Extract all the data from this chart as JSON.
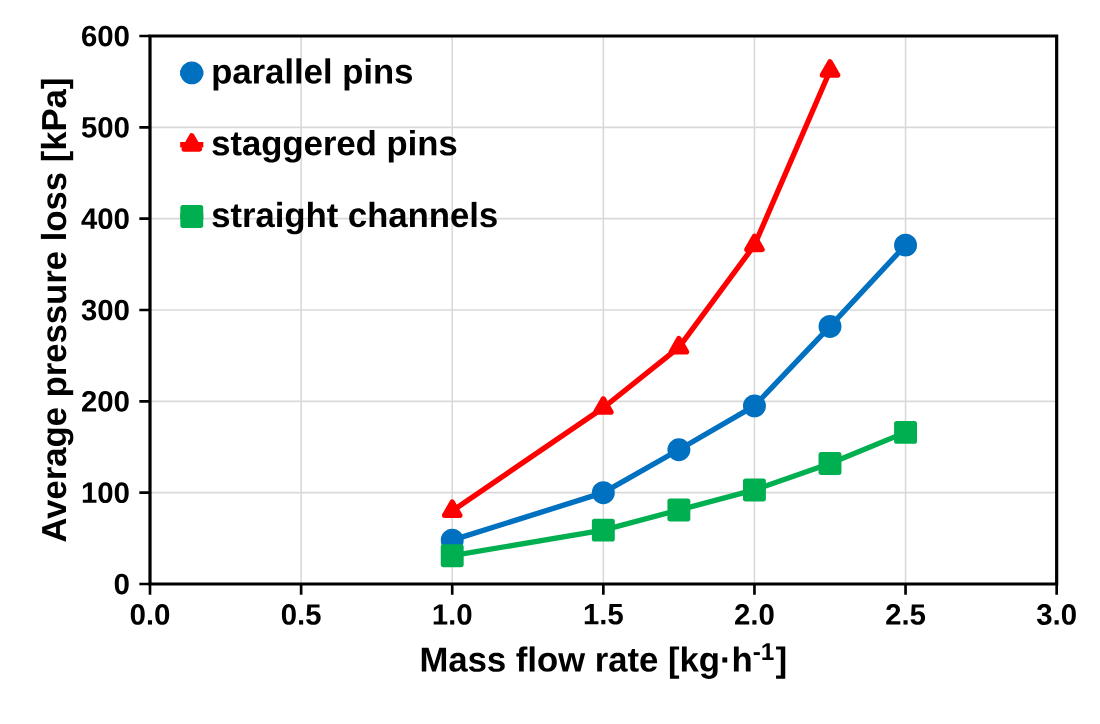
{
  "chart_data": {
    "type": "line",
    "xlabel": "Mass flow rate [kg·h$^{-1}$]",
    "ylabel": "Average pressure loss [kPa]",
    "xlim": [
      0,
      3
    ],
    "ylim": [
      0,
      600
    ],
    "xticks": [
      {
        "value": 0,
        "label": "0.0"
      },
      {
        "value": 0.5,
        "label": "0.5"
      },
      {
        "value": 1,
        "label": "1.0"
      },
      {
        "value": 1.5,
        "label": "1.5"
      },
      {
        "value": 2,
        "label": "2.0"
      },
      {
        "value": 2.5,
        "label": "2.5"
      },
      {
        "value": 3,
        "label": "3.0"
      }
    ],
    "yticks": [
      0,
      100,
      200,
      300,
      400,
      500,
      600
    ],
    "grid": true,
    "legend": "top left",
    "line_style": "solid",
    "series": [
      {
        "name": "parallel pins",
        "color": "#0070c0",
        "marker": "circle",
        "x": [
          1.0,
          1.5,
          1.75,
          2.0,
          2.25,
          2.5
        ],
        "values": [
          48,
          100,
          147,
          195,
          282,
          371
        ]
      },
      {
        "name": "staggered pins",
        "color": "#ff0000",
        "marker": "triangle",
        "x": [
          1.0,
          1.5,
          1.75,
          2.0,
          2.25
        ],
        "values": [
          80,
          193,
          259,
          371,
          562
        ]
      },
      {
        "name": "straight channels",
        "color": "#00b050",
        "marker": "square",
        "x": [
          1.0,
          1.5,
          1.75,
          2.0,
          2.25,
          2.5
        ],
        "values": [
          31,
          59,
          81,
          103,
          132,
          166
        ]
      }
    ]
  }
}
